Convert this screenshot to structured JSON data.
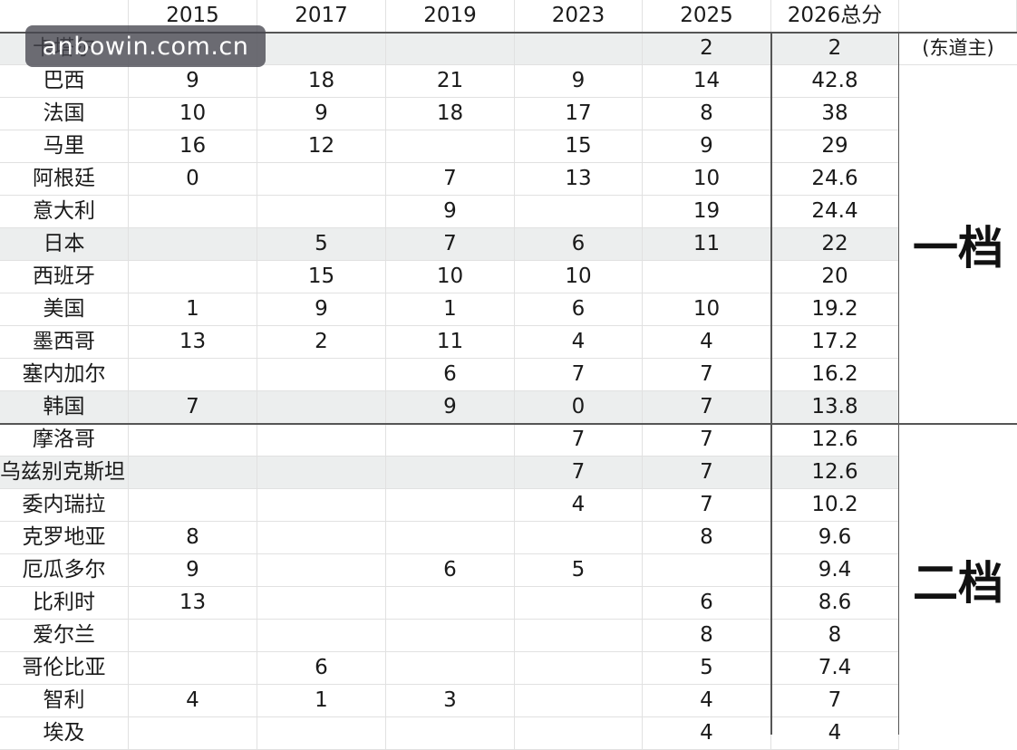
{
  "table": {
    "headers": [
      "",
      "2015",
      "2017",
      "2019",
      "2023",
      "2025",
      "2026总分"
    ],
    "rows": [
      {
        "team": "卡塔尔",
        "v2015": "",
        "v2017": "",
        "v2019": "",
        "v2023": "",
        "v2025": "2",
        "total": "2",
        "shade": true
      },
      {
        "team": "巴西",
        "v2015": "9",
        "v2017": "18",
        "v2019": "21",
        "v2023": "9",
        "v2025": "14",
        "total": "42.8",
        "shade": false
      },
      {
        "team": "法国",
        "v2015": "10",
        "v2017": "9",
        "v2019": "18",
        "v2023": "17",
        "v2025": "8",
        "total": "38",
        "shade": false
      },
      {
        "team": "马里",
        "v2015": "16",
        "v2017": "12",
        "v2019": "",
        "v2023": "15",
        "v2025": "9",
        "total": "29",
        "shade": false
      },
      {
        "team": "阿根廷",
        "v2015": "0",
        "v2017": "",
        "v2019": "7",
        "v2023": "13",
        "v2025": "10",
        "total": "24.6",
        "shade": false
      },
      {
        "team": "意大利",
        "v2015": "",
        "v2017": "",
        "v2019": "9",
        "v2023": "",
        "v2025": "19",
        "total": "24.4",
        "shade": false
      },
      {
        "team": "日本",
        "v2015": "",
        "v2017": "5",
        "v2019": "7",
        "v2023": "6",
        "v2025": "11",
        "total": "22",
        "shade": true
      },
      {
        "team": "西班牙",
        "v2015": "",
        "v2017": "15",
        "v2019": "10",
        "v2023": "10",
        "v2025": "",
        "total": "20",
        "shade": false
      },
      {
        "team": "美国",
        "v2015": "1",
        "v2017": "9",
        "v2019": "1",
        "v2023": "6",
        "v2025": "10",
        "total": "19.2",
        "shade": false
      },
      {
        "team": "墨西哥",
        "v2015": "13",
        "v2017": "2",
        "v2019": "11",
        "v2023": "4",
        "v2025": "4",
        "total": "17.2",
        "shade": false
      },
      {
        "team": "塞内加尔",
        "v2015": "",
        "v2017": "",
        "v2019": "6",
        "v2023": "7",
        "v2025": "7",
        "total": "16.2",
        "shade": false
      },
      {
        "team": "韩国",
        "v2015": "7",
        "v2017": "",
        "v2019": "9",
        "v2023": "0",
        "v2025": "7",
        "total": "13.8",
        "shade": true
      },
      {
        "team": "摩洛哥",
        "v2015": "",
        "v2017": "",
        "v2019": "",
        "v2023": "7",
        "v2025": "7",
        "total": "12.6",
        "shade": false
      },
      {
        "team": "乌兹别克斯坦",
        "v2015": "",
        "v2017": "",
        "v2019": "",
        "v2023": "7",
        "v2025": "7",
        "total": "12.6",
        "shade": true
      },
      {
        "team": "委内瑞拉",
        "v2015": "",
        "v2017": "",
        "v2019": "",
        "v2023": "4",
        "v2025": "7",
        "total": "10.2",
        "shade": false
      },
      {
        "team": "克罗地亚",
        "v2015": "8",
        "v2017": "",
        "v2019": "",
        "v2023": "",
        "v2025": "8",
        "total": "9.6",
        "shade": false
      },
      {
        "team": "厄瓜多尔",
        "v2015": "9",
        "v2017": "",
        "v2019": "6",
        "v2023": "5",
        "v2025": "",
        "total": "9.4",
        "shade": false
      },
      {
        "team": "比利时",
        "v2015": "13",
        "v2017": "",
        "v2019": "",
        "v2023": "",
        "v2025": "6",
        "total": "8.6",
        "shade": false
      },
      {
        "team": "爱尔兰",
        "v2015": "",
        "v2017": "",
        "v2019": "",
        "v2023": "",
        "v2025": "8",
        "total": "8",
        "shade": false
      },
      {
        "team": "哥伦比亚",
        "v2015": "",
        "v2017": "6",
        "v2019": "",
        "v2023": "",
        "v2025": "5",
        "total": "7.4",
        "shade": false
      },
      {
        "team": "智利",
        "v2015": "4",
        "v2017": "1",
        "v2019": "3",
        "v2023": "",
        "v2025": "4",
        "total": "7",
        "shade": false
      },
      {
        "team": "埃及",
        "v2015": "",
        "v2017": "",
        "v2019": "",
        "v2023": "",
        "v2025": "4",
        "total": "4",
        "shade": false
      }
    ],
    "host_note": "(东道主)",
    "tier1_label": "一档",
    "tier2_label": "二档"
  },
  "watermark": "anbowin.com.cn"
}
